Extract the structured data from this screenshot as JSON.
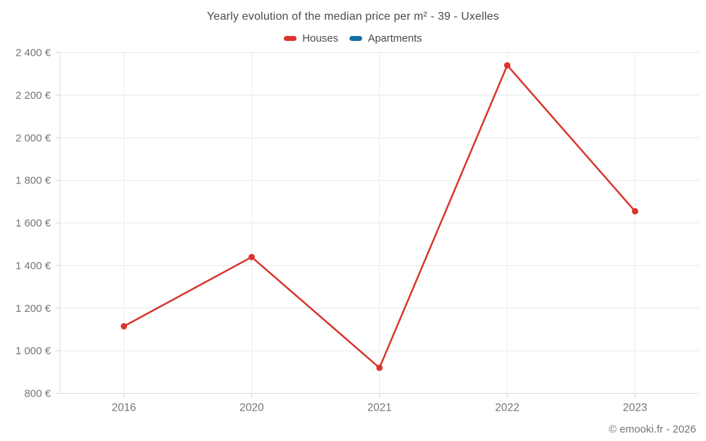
{
  "chart_data": {
    "type": "line",
    "title": "Yearly evolution of the median price per m² - 39 - Uxelles",
    "categories": [
      "2016",
      "2020",
      "2021",
      "2022",
      "2023"
    ],
    "series": [
      {
        "name": "Houses",
        "color": "#d8352c",
        "values": [
          1115,
          1440,
          920,
          2340,
          1655
        ]
      },
      {
        "name": "Apartments",
        "color": "#1272a5",
        "values": []
      }
    ],
    "xlabel": "",
    "ylabel": "",
    "ylim": [
      800,
      2400
    ],
    "y_step": 200,
    "y_ticks": [
      {
        "value": 800,
        "label": "800 €"
      },
      {
        "value": 1000,
        "label": "1 000 €"
      },
      {
        "value": 1200,
        "label": "1 200 €"
      },
      {
        "value": 1400,
        "label": "1 400 €"
      },
      {
        "value": 1600,
        "label": "1 600 €"
      },
      {
        "value": 1800,
        "label": "1 800 €"
      },
      {
        "value": 2000,
        "label": "2 000 €"
      },
      {
        "value": 2200,
        "label": "2 200 €"
      },
      {
        "value": 2400,
        "label": "2 400 €"
      }
    ],
    "grid": true,
    "legend_position": "top",
    "colors": {
      "grid_h": "#e8e8e8",
      "grid_v": "#ededed",
      "axis": "#dcdcdc",
      "tick": "#d4d4d4",
      "tick_label": "#757575"
    }
  },
  "footer": {
    "copyright": "© emooki.fr - 2026"
  }
}
